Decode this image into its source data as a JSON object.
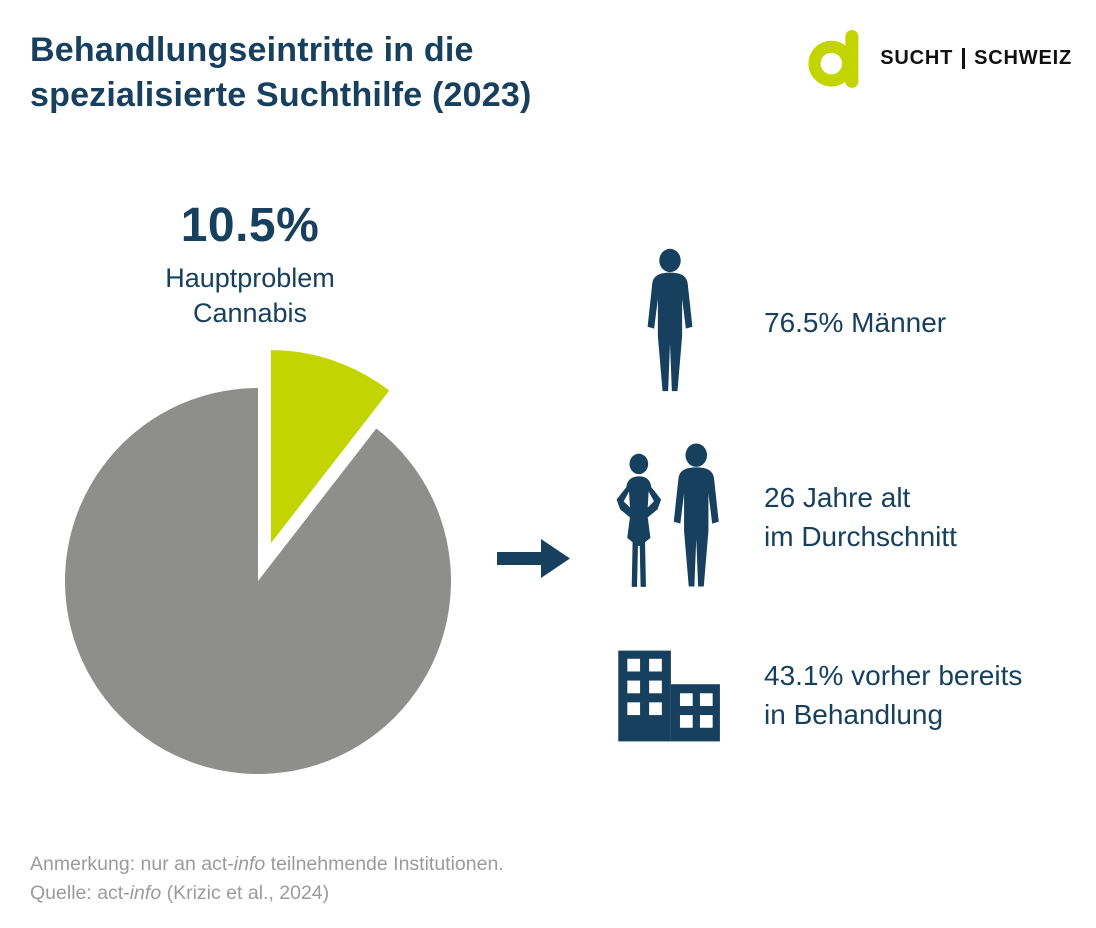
{
  "header": {
    "title_line1": "Behandlungseintritte in die",
    "title_line2": "spezialisierte Suchthilfe (2023)",
    "logo": {
      "word1": "SUCHT",
      "word2": "SCHWEIZ"
    }
  },
  "chart_data": {
    "type": "pie",
    "title": "Behandlungseintritte in die spezialisierte Suchthilfe (2023)",
    "unit": "%",
    "start_angle_deg": 0,
    "legend": "none",
    "slices": [
      {
        "label": "Hauptproblem Cannabis",
        "value": 10.5,
        "color": "#c2d500",
        "exploded": true
      },
      {
        "label": "",
        "value": 89.5,
        "color": "#8e8e8c",
        "exploded": false
      }
    ],
    "callout": {
      "percent": "10.5%",
      "label_line1": "Hauptproblem",
      "label_line2": "Cannabis"
    }
  },
  "facts": [
    {
      "icon": "man-icon",
      "line1": "76.5% Männer",
      "line2": ""
    },
    {
      "icon": "woman-man-icon",
      "line1": "26 Jahre alt",
      "line2": "im Durchschnitt"
    },
    {
      "icon": "building-icon",
      "line1": "43.1% vorher bereits",
      "line2": "in Behandlung"
    }
  ],
  "footer": {
    "note_pre": "Anmerkung: nur an act-",
    "note_italic": "info",
    "note_post": " teilnehmende Institutionen.",
    "source_pre": "Quelle: act-",
    "source_italic": "info",
    "source_post": " (Krizic et al., 2024)"
  },
  "colors": {
    "navy": "#17405f",
    "lime": "#c2d500",
    "gray": "#8e8e8c",
    "footer_gray": "#9b9b9b"
  }
}
